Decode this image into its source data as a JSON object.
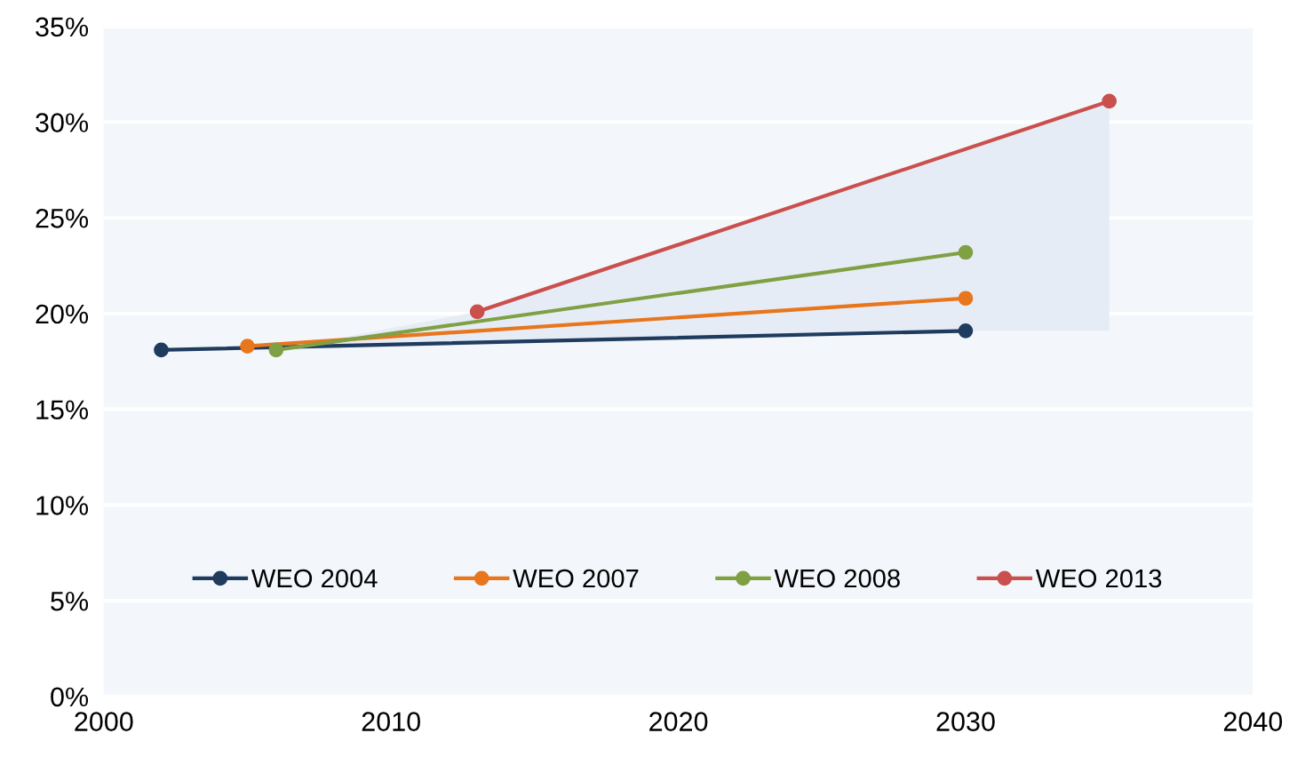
{
  "chart_data": {
    "type": "line",
    "series": [
      {
        "name": "WEO 2004",
        "color": "#1f3b5e",
        "x": [
          2002,
          2030
        ],
        "values": [
          18.1,
          19.1
        ]
      },
      {
        "name": "WEO 2007",
        "color": "#e8761d",
        "x": [
          2005,
          2030
        ],
        "values": [
          18.3,
          20.8
        ]
      },
      {
        "name": "WEO 2008",
        "color": "#7fa043",
        "x": [
          2006,
          2030
        ],
        "values": [
          18.1,
          23.2
        ]
      },
      {
        "name": "WEO 2013",
        "color": "#c9504d",
        "x": [
          2013,
          2035
        ],
        "values": [
          20.1,
          31.1
        ]
      }
    ],
    "xlim": [
      2000,
      2040
    ],
    "xticks": [
      2000,
      2010,
      2020,
      2030,
      2040
    ],
    "ylim": [
      0,
      35
    ],
    "yticks": [
      {
        "value": 0,
        "label": "0%"
      },
      {
        "value": 5,
        "label": "5%"
      },
      {
        "value": 10,
        "label": "10%"
      },
      {
        "value": 15,
        "label": "15%"
      },
      {
        "value": 20,
        "label": "20%"
      },
      {
        "value": 25,
        "label": "25%"
      },
      {
        "value": 30,
        "label": "30%"
      },
      {
        "value": 35,
        "label": "35%"
      }
    ],
    "grid": "y",
    "legend": "bottom",
    "marker": "circle",
    "line_style": "solid"
  }
}
